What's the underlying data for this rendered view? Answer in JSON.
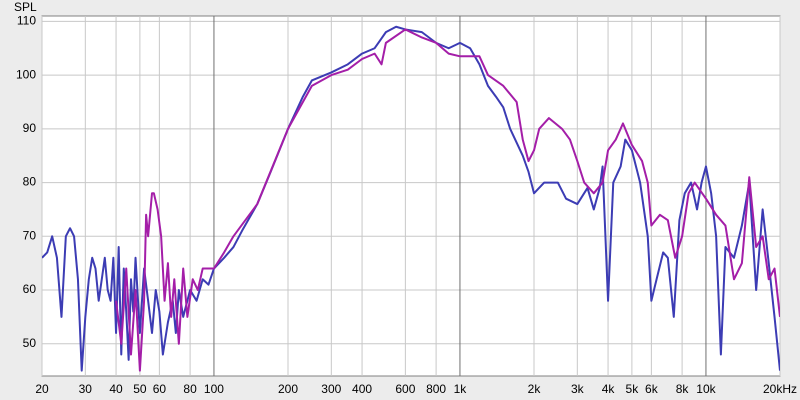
{
  "chart_data": {
    "type": "line",
    "y_label": "SPL",
    "xscale": "log",
    "grid": true,
    "xlim": [
      20,
      20000
    ],
    "ylim": [
      44,
      111
    ],
    "xticks": [
      20,
      30,
      40,
      50,
      60,
      80,
      100,
      200,
      300,
      400,
      600,
      800,
      {
        "value": 1000,
        "label": "1k"
      },
      {
        "value": 2000,
        "label": "2k"
      },
      {
        "value": 3000,
        "label": "3k"
      },
      {
        "value": 4000,
        "label": "4k"
      },
      {
        "value": 5000,
        "label": "5k"
      },
      {
        "value": 6000,
        "label": "6k"
      },
      {
        "value": 8000,
        "label": "8k"
      },
      {
        "value": 10000,
        "label": "10k"
      },
      {
        "value": 20000,
        "label": "20kHz"
      }
    ],
    "yticks": [
      50,
      60,
      70,
      80,
      90,
      100,
      110
    ],
    "series": [
      {
        "color": "#3c3cb4",
        "x": [
          20,
          21,
          22,
          23,
          24,
          25,
          26,
          27,
          28,
          29,
          30,
          31,
          32,
          33,
          34,
          35,
          36,
          37,
          38,
          39,
          40,
          41,
          42,
          43,
          44,
          45,
          46,
          47,
          48,
          50,
          52,
          54,
          56,
          58,
          60,
          62,
          65,
          68,
          70,
          72,
          75,
          80,
          85,
          90,
          95,
          100,
          110,
          120,
          130,
          150,
          170,
          200,
          230,
          250,
          300,
          350,
          400,
          450,
          500,
          550,
          600,
          700,
          800,
          900,
          1000,
          1100,
          1200,
          1300,
          1400,
          1500,
          1600,
          1800,
          1900,
          2000,
          2200,
          2500,
          2700,
          3000,
          3300,
          3500,
          3700,
          3800,
          4000,
          4200,
          4500,
          4700,
          5000,
          5400,
          5800,
          6000,
          6300,
          6700,
          7000,
          7400,
          7800,
          8200,
          8700,
          9200,
          9600,
          10000,
          10500,
          11000,
          11500,
          12000,
          13000,
          14000,
          15000,
          16000,
          17000,
          18000,
          19000,
          20000
        ],
        "values": [
          66,
          67,
          70,
          66,
          55,
          70,
          71.5,
          70,
          62,
          45,
          55,
          62,
          66,
          64,
          58,
          62,
          66,
          60,
          58,
          66,
          52,
          68,
          48,
          64,
          56,
          47,
          62,
          56,
          66,
          52,
          64,
          58,
          52,
          60,
          56,
          48,
          54,
          58,
          52,
          60,
          55,
          60,
          58,
          62,
          61,
          64,
          66,
          68,
          71,
          76,
          82,
          90,
          96,
          99,
          100.5,
          102,
          104,
          105,
          108,
          109,
          108.5,
          108,
          106,
          105,
          106,
          105,
          102,
          98,
          96,
          94,
          90,
          85,
          82,
          78,
          80,
          80,
          77,
          76,
          79,
          75,
          79,
          83,
          58,
          80,
          83,
          88,
          86,
          80,
          70,
          58,
          62,
          67,
          66,
          55,
          73,
          78,
          80,
          75,
          80,
          83,
          78,
          70,
          48,
          68,
          66,
          72,
          80,
          60,
          75,
          65,
          55,
          45
        ]
      },
      {
        "color": "#a41ea8",
        "x": [
          40,
          42,
          44,
          46,
          48,
          50,
          52,
          53,
          54,
          56,
          57,
          59,
          61,
          63,
          65,
          67,
          69,
          72,
          75,
          78,
          82,
          86,
          90,
          100,
          110,
          120,
          150,
          200,
          250,
          300,
          350,
          400,
          450,
          480,
          500,
          600,
          700,
          800,
          900,
          1000,
          1200,
          1300,
          1500,
          1700,
          1800,
          1900,
          2000,
          2100,
          2300,
          2600,
          2800,
          3000,
          3200,
          3500,
          3800,
          4000,
          4300,
          4600,
          5000,
          5500,
          5800,
          6000,
          6500,
          7000,
          7500,
          8000,
          8500,
          9000,
          10000,
          11000,
          12000,
          13000,
          14000,
          15000,
          16000,
          17000,
          18000,
          19000,
          20000
        ],
        "values": [
          58,
          50,
          64,
          48,
          60,
          45,
          58,
          74,
          70,
          78,
          78,
          75,
          70,
          58,
          65,
          55,
          62,
          50,
          64,
          55,
          62,
          60,
          64,
          64,
          67,
          70,
          76,
          90,
          98,
          100,
          101,
          103,
          104,
          102,
          106,
          108.5,
          107,
          106,
          104,
          103.5,
          103.5,
          100,
          98,
          95,
          88,
          84,
          86,
          90,
          92,
          90,
          88,
          84,
          80,
          78,
          80,
          86,
          88,
          91,
          87,
          84,
          80,
          72,
          74,
          73,
          66,
          70,
          78,
          80,
          77,
          74,
          72,
          62,
          65,
          81,
          68,
          70,
          62,
          64,
          55
        ]
      }
    ]
  }
}
